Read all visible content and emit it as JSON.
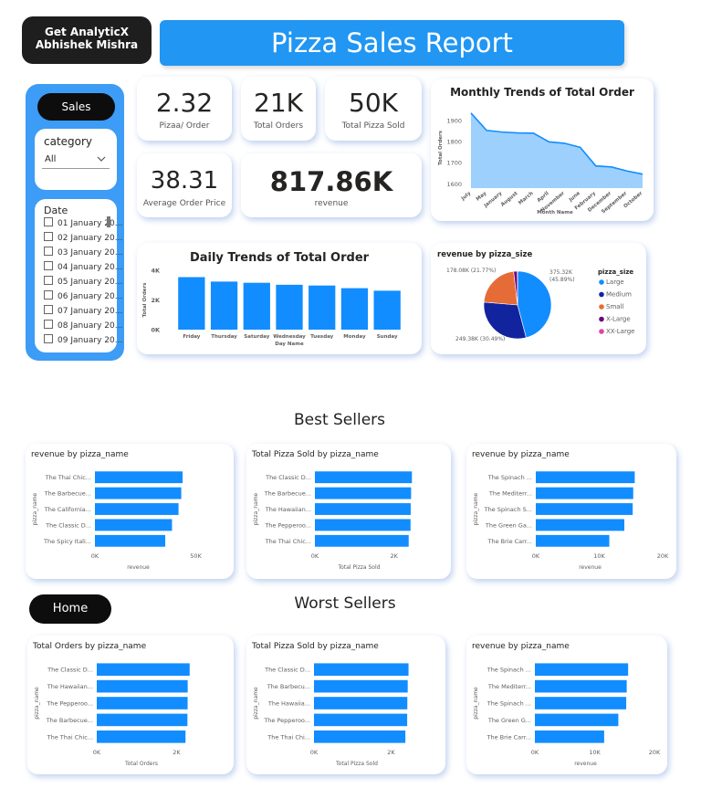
{
  "brand": {
    "line1": "Get AnalyticX",
    "line2": "Abhishek Mishra"
  },
  "report_title": "Pizza Sales Report",
  "sidebar": {
    "sales_button": "Sales",
    "category_label": "category",
    "category_value": "All",
    "date_label": "Date",
    "dates": [
      "01 January 20...",
      "02 January 20...",
      "03 January 20...",
      "04 January 20...",
      "05 January 20...",
      "06 January 20...",
      "07 January 20...",
      "08 January 20...",
      "09 January 20..."
    ]
  },
  "kpis": [
    {
      "value": "2.32",
      "label": "Pizaa/ Order"
    },
    {
      "value": "21K",
      "label": "Total Orders"
    },
    {
      "value": "50K",
      "label": "Total Pizza Sold"
    },
    {
      "value": "38.31",
      "label": "Average Order Price"
    },
    {
      "value": "817.86K",
      "label": "revenue"
    }
  ],
  "home_button": "Home",
  "sections": {
    "best": "Best Sellers",
    "worst": "Worst Sellers"
  },
  "colors": {
    "accent": "#2196f3",
    "bar": "#118dff"
  },
  "chart_data": [
    {
      "id": "monthly",
      "type": "area",
      "title": "Monthly Trends of Total Order",
      "xlabel": "Month Name",
      "ylabel": "Total Orders",
      "categories": [
        "July",
        "May",
        "January",
        "August",
        "March",
        "April",
        "November",
        "June",
        "February",
        "December",
        "September",
        "October"
      ],
      "values": [
        1935,
        1853,
        1845,
        1841,
        1840,
        1799,
        1792,
        1773,
        1685,
        1680,
        1661,
        1646
      ],
      "ylim": [
        1580,
        1960
      ],
      "yticks": [
        1600,
        1700,
        1800,
        1900
      ]
    },
    {
      "id": "daily",
      "type": "bar",
      "title": "Daily Trends of Total Order",
      "xlabel": "Day Name",
      "ylabel": "Total Orders",
      "categories": [
        "Friday",
        "Thursday",
        "Saturday",
        "Wednesday",
        "Tuesday",
        "Monday",
        "Sunday"
      ],
      "values": [
        3538,
        3239,
        3158,
        3024,
        2973,
        2794,
        2624
      ],
      "ylim": [
        0,
        4000
      ],
      "yticks": [
        0,
        2000,
        4000
      ],
      "ytick_labels": [
        "0K",
        "2K",
        "4K"
      ]
    },
    {
      "id": "pie",
      "type": "pie",
      "title": "revenue by pizza_size",
      "legend_title": "pizza_size",
      "slices": [
        {
          "name": "Large",
          "value": 375.32,
          "label": "375.32K",
          "pct": "(45.89%)",
          "color": "#118dff"
        },
        {
          "name": "Medium",
          "value": 249.38,
          "label": "249.38K (30.49%)",
          "color": "#12239e"
        },
        {
          "name": "Small",
          "value": 178.08,
          "label": "178.08K (21.77%)",
          "color": "#e66c37"
        },
        {
          "name": "X-Large",
          "value": 14.08,
          "label": "",
          "color": "#6b007b"
        },
        {
          "name": "XX-Large",
          "value": 1.01,
          "label": "",
          "color": "#e044a7"
        }
      ]
    },
    {
      "id": "best1",
      "type": "bar",
      "orientation": "horizontal",
      "title": "revenue by pizza_name",
      "xlabel": "revenue",
      "ylabel": "pizza_name",
      "categories": [
        "The Thai Chic...",
        "The Barbecue...",
        "The California...",
        "The Classic D...",
        "The Spicy Itali..."
      ],
      "values": [
        43434,
        42768,
        41410,
        38180,
        34831
      ],
      "xlim": [
        0,
        52000
      ],
      "xticks": [
        0,
        50000
      ],
      "xtick_labels": [
        "0K",
        "50K"
      ]
    },
    {
      "id": "best2",
      "type": "bar",
      "orientation": "horizontal",
      "title": "Total Pizza Sold by pizza_name",
      "xlabel": "Total Pizza Sold",
      "ylabel": "pizza_name",
      "categories": [
        "The Classic D...",
        "The Barbecue...",
        "The Hawaiian...",
        "The Pepperoo...",
        "The Thai Chic..."
      ],
      "values": [
        2453,
        2432,
        2422,
        2418,
        2371
      ],
      "xlim": [
        0,
        2700
      ],
      "xticks": [
        0,
        2000
      ],
      "xtick_labels": [
        "0K",
        "2K"
      ]
    },
    {
      "id": "best3",
      "type": "bar",
      "orientation": "horizontal",
      "title": "revenue by pizza_name",
      "xlabel": "revenue",
      "ylabel": "pizza_name",
      "categories": [
        "The Spinach ...",
        "The Mediterr...",
        "The Spinach S...",
        "The Green Ga...",
        "The Brie Carr..."
      ],
      "values": [
        15596,
        15360,
        15277,
        13956,
        11588
      ],
      "xlim": [
        0,
        20000
      ],
      "xticks": [
        0,
        10000,
        20000
      ],
      "xtick_labels": [
        "0K",
        "10K",
        "20K"
      ]
    },
    {
      "id": "worst1",
      "type": "bar",
      "orientation": "horizontal",
      "title": "Total Orders by pizza_name",
      "xlabel": "Total Orders",
      "ylabel": "pizza_name",
      "categories": [
        "The Classic D...",
        "The Hawaiian...",
        "The Pepperoo...",
        "The Barbecue...",
        "The Thai Chic..."
      ],
      "values": [
        2329,
        2280,
        2278,
        2273,
        2225
      ],
      "xlim": [
        0,
        2700
      ],
      "xticks": [
        0,
        2000
      ],
      "xtick_labels": [
        "0K",
        "2K"
      ]
    },
    {
      "id": "worst2",
      "type": "bar",
      "orientation": "horizontal",
      "title": "Total Pizza Sold by pizza_name",
      "xlabel": "Total Pizza Sold",
      "ylabel": "pizza_name",
      "categories": [
        "The Classic D...",
        "The Barbecu...",
        "The Hawaiia...",
        "The Pepperoo...",
        "The Thai Chi..."
      ],
      "values": [
        2453,
        2432,
        2422,
        2418,
        2371
      ],
      "xlim": [
        0,
        2700
      ],
      "xticks": [
        0,
        2000
      ],
      "xtick_labels": [
        "0K",
        "2K"
      ]
    },
    {
      "id": "worst3",
      "type": "bar",
      "orientation": "horizontal",
      "title": "revenue by pizza_name",
      "xlabel": "revenue",
      "ylabel": "pizza_name",
      "categories": [
        "The Spinach ...",
        "The Mediterr...",
        "The Spinach ...",
        "The Green G...",
        "The Brie Carr..."
      ],
      "values": [
        15596,
        15360,
        15277,
        13956,
        11588
      ],
      "xlim": [
        0,
        20000
      ],
      "xticks": [
        0,
        10000,
        20000
      ],
      "xtick_labels": [
        "0K",
        "10K",
        "20K"
      ]
    }
  ]
}
